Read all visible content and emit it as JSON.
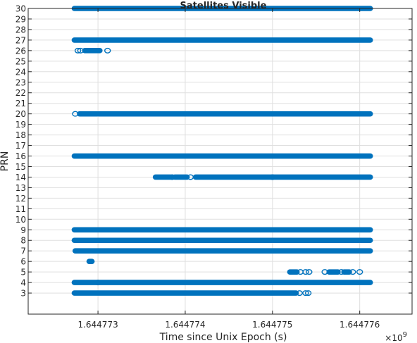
{
  "chart_data": {
    "type": "scatter",
    "title": "Satellites Visible",
    "xlabel": "Time since Unix Epoch (s)",
    "ylabel": "PRN",
    "x_exponent_label": "×10",
    "x_exponent": "9",
    "xlim": [
      1644772200,
      1644776600
    ],
    "ylim": [
      1,
      30
    ],
    "xticks": [
      1644773000,
      1644774000,
      1644775000,
      1644776000
    ],
    "xtick_labels": [
      "1.644773",
      "1.644774",
      "1.644775",
      "1.644776"
    ],
    "yticks": [
      3,
      4,
      5,
      6,
      7,
      8,
      9,
      10,
      11,
      12,
      13,
      14,
      15,
      16,
      17,
      18,
      19,
      20,
      21,
      22,
      23,
      24,
      25,
      26,
      27,
      28,
      29,
      30
    ],
    "grid": true,
    "marker_color": "#0072BD",
    "series": [
      {
        "prn": 30,
        "solid": [
          [
            1644772730,
            1644776120
          ]
        ],
        "sparse": []
      },
      {
        "prn": 27,
        "solid": [
          [
            1644772730,
            1644776120
          ]
        ],
        "sparse": []
      },
      {
        "prn": 26,
        "solid": [
          [
            1644772850,
            1644773020
          ]
        ],
        "sparse": [
          1644772770,
          1644772800,
          1644773110
        ]
      },
      {
        "prn": 20,
        "solid": [
          [
            1644772790,
            1644772990
          ],
          [
            1644773010,
            1644776120
          ]
        ],
        "sparse": [
          1644772740
        ]
      },
      {
        "prn": 16,
        "solid": [
          [
            1644772730,
            1644776120
          ]
        ],
        "sparse": []
      },
      {
        "prn": 14,
        "solid": [
          [
            1644773660,
            1644773830
          ],
          [
            1644773880,
            1644774020
          ],
          [
            1644774120,
            1644776120
          ]
        ],
        "sparse": [
          1644773850,
          1644774060,
          1644775000
        ]
      },
      {
        "prn": 9,
        "solid": [
          [
            1644772730,
            1644776120
          ]
        ],
        "sparse": []
      },
      {
        "prn": 8,
        "solid": [
          [
            1644772730,
            1644776120
          ]
        ],
        "sparse": []
      },
      {
        "prn": 7,
        "solid": [
          [
            1644772740,
            1644776120
          ]
        ],
        "sparse": []
      },
      {
        "prn": 6,
        "solid": [
          [
            1644772900,
            1644772930
          ]
        ],
        "sparse": []
      },
      {
        "prn": 5,
        "solid": [
          [
            1644775200,
            1644775280
          ],
          [
            1644775650,
            1644775750
          ],
          [
            1644775820,
            1644775880
          ]
        ],
        "sparse": [
          1644775320,
          1644775380,
          1644775420,
          1644775600,
          1644775790,
          1644775920,
          1644776000
        ]
      },
      {
        "prn": 4,
        "solid": [
          [
            1644772730,
            1644776120
          ]
        ],
        "sparse": [
          1644773000
        ]
      },
      {
        "prn": 3,
        "solid": [
          [
            1644772730,
            1644775270
          ]
        ],
        "sparse": [
          1644775310,
          1644775380,
          1644775410
        ]
      }
    ]
  }
}
